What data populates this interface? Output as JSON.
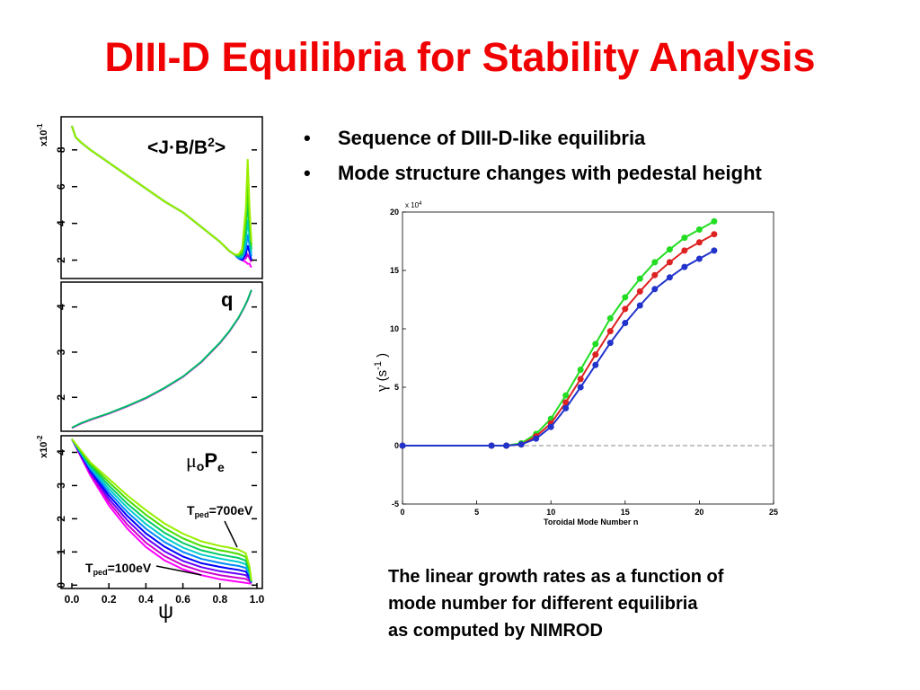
{
  "slide": {
    "title": "DIII-D Equilibria for Stability Analysis",
    "bullets": [
      "Sequence of DIII-D-like equilibria",
      "Mode structure changes with pedestal height"
    ],
    "bullet_icon": "•",
    "caption": [
      "The linear growth rates as a function of",
      "mode number for different equilibria",
      "as computed by NIMROD"
    ],
    "title_color": "#f00000"
  },
  "chart_data": [
    {
      "type": "line",
      "panel": "top",
      "label": "<J·B/B²>",
      "label_parts": {
        "main": "<J·B/B",
        "sup": "2",
        "end": ">"
      },
      "multiplier": "x10",
      "multiplier_exp": "-1",
      "ylim": [
        1.0,
        9.8
      ],
      "xlim": [
        0,
        1
      ],
      "yticks": [
        "2",
        "4",
        "6",
        "8"
      ],
      "ytick_values": [
        2,
        4,
        6,
        8
      ],
      "colors": [
        "#ff00ff",
        "#cc00cc",
        "#0000ff",
        "#0088ff",
        "#00cccc",
        "#00cc66",
        "#44dd00",
        "#99ee00"
      ],
      "series": [
        {
          "name": "",
          "x": [
            0,
            0.02,
            0.05,
            0.1,
            0.2,
            0.3,
            0.4,
            0.5,
            0.6,
            0.7,
            0.8,
            0.85,
            0.88,
            0.9,
            0.92,
            0.94,
            0.95,
            0.96,
            0.97
          ],
          "y": [
            9.3,
            8.7,
            8.4,
            8.0,
            7.3,
            6.6,
            5.9,
            5.2,
            4.6,
            3.8,
            3.0,
            2.5,
            2.3,
            2.1,
            2.0,
            1.9,
            1.8,
            1.8,
            1.6
          ]
        },
        {
          "name": "",
          "x": [
            0,
            0.02,
            0.05,
            0.1,
            0.2,
            0.3,
            0.4,
            0.5,
            0.6,
            0.7,
            0.8,
            0.85,
            0.88,
            0.9,
            0.92,
            0.94,
            0.95,
            0.96,
            0.97
          ],
          "y": [
            9.3,
            8.7,
            8.4,
            8.0,
            7.3,
            6.6,
            5.9,
            5.2,
            4.6,
            3.8,
            3.0,
            2.5,
            2.3,
            2.1,
            2.0,
            2.1,
            2.3,
            2.1,
            1.9
          ]
        },
        {
          "name": "",
          "x": [
            0,
            0.02,
            0.05,
            0.1,
            0.2,
            0.3,
            0.4,
            0.5,
            0.6,
            0.7,
            0.8,
            0.85,
            0.88,
            0.9,
            0.92,
            0.94,
            0.95,
            0.96,
            0.97
          ],
          "y": [
            9.3,
            8.7,
            8.4,
            8.0,
            7.3,
            6.6,
            5.9,
            5.2,
            4.6,
            3.8,
            3.0,
            2.5,
            2.3,
            2.1,
            2.0,
            2.3,
            2.8,
            2.4,
            2.0
          ]
        },
        {
          "name": "",
          "x": [
            0,
            0.02,
            0.05,
            0.1,
            0.2,
            0.3,
            0.4,
            0.5,
            0.6,
            0.7,
            0.8,
            0.85,
            0.88,
            0.9,
            0.92,
            0.94,
            0.95,
            0.96,
            0.97
          ],
          "y": [
            9.3,
            8.7,
            8.4,
            8.0,
            7.3,
            6.6,
            5.9,
            5.2,
            4.6,
            3.8,
            3.0,
            2.5,
            2.3,
            2.1,
            2.1,
            2.6,
            3.4,
            2.8,
            2.2
          ]
        },
        {
          "name": "",
          "x": [
            0,
            0.02,
            0.05,
            0.1,
            0.2,
            0.3,
            0.4,
            0.5,
            0.6,
            0.7,
            0.8,
            0.85,
            0.88,
            0.9,
            0.92,
            0.94,
            0.95,
            0.96,
            0.97
          ],
          "y": [
            9.3,
            8.7,
            8.4,
            8.0,
            7.3,
            6.6,
            5.9,
            5.2,
            4.6,
            3.8,
            3.0,
            2.5,
            2.3,
            2.2,
            2.2,
            3.0,
            4.2,
            3.2,
            2.4
          ]
        },
        {
          "name": "",
          "x": [
            0,
            0.02,
            0.05,
            0.1,
            0.2,
            0.3,
            0.4,
            0.5,
            0.6,
            0.7,
            0.8,
            0.85,
            0.88,
            0.9,
            0.92,
            0.94,
            0.95,
            0.96,
            0.97
          ],
          "y": [
            9.3,
            8.7,
            8.4,
            8.0,
            7.3,
            6.6,
            5.9,
            5.2,
            4.6,
            3.8,
            3.0,
            2.5,
            2.3,
            2.2,
            2.3,
            3.5,
            5.1,
            3.7,
            2.6
          ]
        },
        {
          "name": "",
          "x": [
            0,
            0.02,
            0.05,
            0.1,
            0.2,
            0.3,
            0.4,
            0.5,
            0.6,
            0.7,
            0.8,
            0.85,
            0.88,
            0.9,
            0.92,
            0.94,
            0.95,
            0.96,
            0.97
          ],
          "y": [
            9.3,
            8.7,
            8.4,
            8.0,
            7.3,
            6.6,
            5.9,
            5.2,
            4.6,
            3.8,
            3.0,
            2.5,
            2.3,
            2.3,
            2.4,
            4.1,
            6.1,
            4.2,
            2.8
          ]
        },
        {
          "name": "",
          "x": [
            0,
            0.02,
            0.05,
            0.1,
            0.2,
            0.3,
            0.4,
            0.5,
            0.6,
            0.7,
            0.8,
            0.85,
            0.88,
            0.9,
            0.92,
            0.94,
            0.95,
            0.96,
            0.97
          ],
          "y": [
            9.3,
            8.7,
            8.4,
            8.0,
            7.3,
            6.6,
            5.9,
            5.2,
            4.6,
            3.8,
            3.0,
            2.5,
            2.3,
            2.3,
            2.6,
            4.8,
            7.5,
            4.8,
            3.0
          ]
        }
      ]
    },
    {
      "type": "line",
      "panel": "middle",
      "label": "q",
      "ylim": [
        1.25,
        4.55
      ],
      "xlim": [
        0,
        1
      ],
      "yticks": [
        "2",
        "3",
        "4"
      ],
      "ytick_values": [
        2,
        3,
        4
      ],
      "colors": [
        "#ff00ff",
        "#00bb66"
      ],
      "series": [
        {
          "name": "",
          "x": [
            0,
            0.05,
            0.1,
            0.2,
            0.3,
            0.4,
            0.5,
            0.6,
            0.7,
            0.8,
            0.85,
            0.9,
            0.93,
            0.95,
            0.97
          ],
          "y": [
            1.32,
            1.42,
            1.5,
            1.64,
            1.8,
            1.98,
            2.2,
            2.45,
            2.78,
            3.2,
            3.45,
            3.75,
            3.98,
            4.15,
            4.37
          ]
        },
        {
          "name": "",
          "x": [
            0,
            0.05,
            0.1,
            0.2,
            0.3,
            0.4,
            0.5,
            0.6,
            0.7,
            0.8,
            0.85,
            0.9,
            0.93,
            0.95,
            0.97
          ],
          "y": [
            1.33,
            1.43,
            1.51,
            1.65,
            1.81,
            1.99,
            2.21,
            2.46,
            2.79,
            3.21,
            3.46,
            3.76,
            3.99,
            4.16,
            4.38
          ]
        }
      ]
    },
    {
      "type": "line",
      "panel": "bottom",
      "label_parts": {
        "mu": "μ",
        "sub_o": "o",
        "P": "P",
        "sub_e": "e"
      },
      "multiplier": "x10",
      "multiplier_exp": "-2",
      "xlabel": "ψ",
      "xlim": [
        0,
        1
      ],
      "ylim": [
        -0.1,
        4.5
      ],
      "xticks": [
        "0.0",
        "0.2",
        "0.4",
        "0.6",
        "0.8",
        "1.0"
      ],
      "xtick_values": [
        0,
        0.2,
        0.4,
        0.6,
        0.8,
        1.0
      ],
      "yticks": [
        "0",
        "1",
        "2",
        "3",
        "4"
      ],
      "ytick_values": [
        0,
        1,
        2,
        3,
        4
      ],
      "annotations": [
        {
          "text_main": "T",
          "text_sub": "ped",
          "text_end": "=700eV"
        },
        {
          "text_main": "T",
          "text_sub": "ped",
          "text_end": "=100eV"
        }
      ],
      "colors": [
        "#ff00ff",
        "#cc00cc",
        "#6600ff",
        "#0000ff",
        "#0088ff",
        "#00cccc",
        "#00cc66",
        "#44dd00",
        "#99ee00"
      ],
      "series": [
        {
          "name": "",
          "x": [
            0,
            0.1,
            0.2,
            0.3,
            0.4,
            0.5,
            0.6,
            0.7,
            0.8,
            0.85,
            0.9,
            0.94,
            0.96,
            0.97
          ],
          "y": [
            4.4,
            3.3,
            2.4,
            1.7,
            1.15,
            0.75,
            0.48,
            0.3,
            0.18,
            0.14,
            0.1,
            0.07,
            0.05,
            0.05
          ]
        },
        {
          "name": "",
          "x": [
            0,
            0.1,
            0.2,
            0.3,
            0.4,
            0.5,
            0.6,
            0.7,
            0.8,
            0.85,
            0.9,
            0.94,
            0.96,
            0.97
          ],
          "y": [
            4.4,
            3.35,
            2.5,
            1.82,
            1.28,
            0.88,
            0.6,
            0.42,
            0.3,
            0.26,
            0.22,
            0.19,
            0.12,
            0.06
          ]
        },
        {
          "name": "",
          "x": [
            0,
            0.1,
            0.2,
            0.3,
            0.4,
            0.5,
            0.6,
            0.7,
            0.8,
            0.85,
            0.9,
            0.94,
            0.96,
            0.97
          ],
          "y": [
            4.4,
            3.4,
            2.6,
            1.95,
            1.42,
            1.02,
            0.73,
            0.54,
            0.42,
            0.38,
            0.34,
            0.3,
            0.18,
            0.07
          ]
        },
        {
          "name": "",
          "x": [
            0,
            0.1,
            0.2,
            0.3,
            0.4,
            0.5,
            0.6,
            0.7,
            0.8,
            0.85,
            0.9,
            0.94,
            0.96,
            0.97
          ],
          "y": [
            4.4,
            3.45,
            2.7,
            2.08,
            1.56,
            1.16,
            0.86,
            0.66,
            0.55,
            0.5,
            0.46,
            0.41,
            0.24,
            0.08
          ]
        },
        {
          "name": "",
          "x": [
            0,
            0.1,
            0.2,
            0.3,
            0.4,
            0.5,
            0.6,
            0.7,
            0.8,
            0.85,
            0.9,
            0.94,
            0.96,
            0.97
          ],
          "y": [
            4.4,
            3.5,
            2.8,
            2.2,
            1.7,
            1.3,
            1.0,
            0.79,
            0.67,
            0.62,
            0.58,
            0.52,
            0.3,
            0.09
          ]
        },
        {
          "name": "",
          "x": [
            0,
            0.1,
            0.2,
            0.3,
            0.4,
            0.5,
            0.6,
            0.7,
            0.8,
            0.85,
            0.9,
            0.94,
            0.96,
            0.97
          ],
          "y": [
            4.4,
            3.55,
            2.9,
            2.33,
            1.84,
            1.44,
            1.13,
            0.92,
            0.8,
            0.75,
            0.7,
            0.63,
            0.36,
            0.1
          ]
        },
        {
          "name": "",
          "x": [
            0,
            0.1,
            0.2,
            0.3,
            0.4,
            0.5,
            0.6,
            0.7,
            0.8,
            0.85,
            0.9,
            0.94,
            0.96,
            0.97
          ],
          "y": [
            4.4,
            3.6,
            3.0,
            2.45,
            1.98,
            1.58,
            1.27,
            1.05,
            0.92,
            0.87,
            0.82,
            0.74,
            0.42,
            0.11
          ]
        },
        {
          "name": "",
          "x": [
            0,
            0.1,
            0.2,
            0.3,
            0.4,
            0.5,
            0.6,
            0.7,
            0.8,
            0.85,
            0.9,
            0.94,
            0.96,
            0.97
          ],
          "y": [
            4.4,
            3.65,
            3.1,
            2.58,
            2.12,
            1.72,
            1.41,
            1.18,
            1.05,
            1.0,
            0.94,
            0.85,
            0.48,
            0.12
          ]
        },
        {
          "name": "",
          "x": [
            0,
            0.1,
            0.2,
            0.3,
            0.4,
            0.5,
            0.6,
            0.7,
            0.8,
            0.85,
            0.9,
            0.94,
            0.96,
            0.97
          ],
          "y": [
            4.4,
            3.7,
            3.2,
            2.7,
            2.26,
            1.86,
            1.55,
            1.32,
            1.18,
            1.13,
            1.07,
            0.96,
            0.55,
            0.13
          ]
        }
      ]
    },
    {
      "type": "line",
      "panel": "growth",
      "xlabel": "Toroidal Mode Number n",
      "ylabel_parts": {
        "gamma": "γ",
        "open": " (s",
        "exp": "-1",
        "close": " )"
      },
      "multiplier": "x 10",
      "multiplier_exp": "4",
      "xlim": [
        0,
        25
      ],
      "ylim": [
        -5,
        20
      ],
      "xticks": [
        "0",
        "5",
        "10",
        "15",
        "20",
        "25"
      ],
      "xtick_values": [
        0,
        5,
        10,
        15,
        20,
        25
      ],
      "yticks": [
        "-5",
        "0",
        "5",
        "10",
        "15",
        "20"
      ],
      "ytick_values": [
        -5,
        0,
        5,
        10,
        15,
        20
      ],
      "zero_line": true,
      "series": [
        {
          "name": "",
          "color": "#22dd22",
          "x": [
            0,
            6,
            7,
            8,
            9,
            10,
            11,
            12,
            13,
            14,
            15,
            16,
            17,
            18,
            19,
            20,
            21
          ],
          "y": [
            0,
            0,
            0,
            0.2,
            1.0,
            2.3,
            4.3,
            6.5,
            8.7,
            10.9,
            12.7,
            14.3,
            15.7,
            16.8,
            17.8,
            18.5,
            19.2
          ]
        },
        {
          "name": "",
          "color": "#dd2222",
          "x": [
            0,
            6,
            7,
            8,
            9,
            10,
            11,
            12,
            13,
            14,
            15,
            16,
            17,
            18,
            19,
            20,
            21
          ],
          "y": [
            0,
            0,
            0,
            0.1,
            0.8,
            1.9,
            3.7,
            5.7,
            7.8,
            9.8,
            11.7,
            13.2,
            14.6,
            15.7,
            16.7,
            17.4,
            18.1
          ]
        },
        {
          "name": "",
          "color": "#2233cc",
          "x": [
            0,
            6,
            7,
            8,
            9,
            10,
            11,
            12,
            13,
            14,
            15,
            16,
            17,
            18,
            19,
            20,
            21
          ],
          "y": [
            0,
            0,
            0,
            0.1,
            0.6,
            1.6,
            3.2,
            5.0,
            6.9,
            8.8,
            10.5,
            12.0,
            13.4,
            14.4,
            15.3,
            16.0,
            16.7
          ]
        }
      ]
    }
  ]
}
